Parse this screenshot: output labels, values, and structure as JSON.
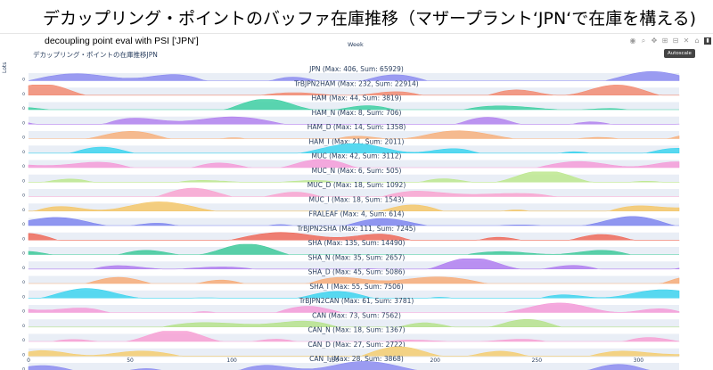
{
  "slide_title": "デカップリング・ポイントのバッファ在庫推移（マザープラント‘JPN‘で在庫を構える)",
  "subtitle": "decoupling point eval  with PSI  ['JPN']",
  "toolbar": {
    "icons": [
      "camera-icon",
      "zoom-icon",
      "pan-icon",
      "zoom-in-icon",
      "zoom-out-icon",
      "autoscale-icon",
      "home-icon",
      "plotly-logo-icon"
    ],
    "tooltip": "Autoscale"
  },
  "chart_data": {
    "type": "area",
    "title": "デカップリング・ポイントの在庫推移JPN",
    "xlabel": "Week",
    "ylabel": "Lots",
    "xlim": [
      0,
      320
    ],
    "xticks": [
      0,
      50,
      100,
      150,
      200,
      250,
      300
    ],
    "series": [
      {
        "name": "JPN",
        "title": "JPN (Max: 406, Sum: 65929)",
        "max": 406,
        "sum": 65929,
        "color": "#8c8cf0"
      },
      {
        "name": "TrBJPN2HAM",
        "title": "TrBJPN2HAM (Max: 232, Sum: 22914)",
        "max": 232,
        "sum": 22914,
        "color": "#f28b72"
      },
      {
        "name": "HAM",
        "title": "HAM (Max: 44, Sum: 3819)",
        "max": 44,
        "sum": 3819,
        "color": "#3ecfa2"
      },
      {
        "name": "HAM_N",
        "title": "HAM_N (Max: 8, Sum: 706)",
        "max": 8,
        "sum": 706,
        "color": "#b382ee"
      },
      {
        "name": "HAM_D",
        "title": "HAM_D (Max: 14, Sum: 1358)",
        "max": 14,
        "sum": 1358,
        "color": "#f7b07c"
      },
      {
        "name": "HAM_I",
        "title": "HAM_I (Max: 21, Sum: 2011)",
        "max": 21,
        "sum": 2011,
        "color": "#3dd3ee"
      },
      {
        "name": "MUC",
        "title": "MUC (Max: 42, Sum: 3112)",
        "max": 42,
        "sum": 3112,
        "color": "#f49bd8"
      },
      {
        "name": "MUC_N",
        "title": "MUC_N (Max: 6, Sum: 505)",
        "max": 6,
        "sum": 505,
        "color": "#bde88e"
      },
      {
        "name": "MUC_D",
        "title": "MUC_D (Max: 18, Sum: 1092)",
        "max": 18,
        "sum": 1092,
        "color": "#f9a3d0"
      },
      {
        "name": "MUC_I",
        "title": "MUC_I (Max: 18, Sum: 1543)",
        "max": 18,
        "sum": 1543,
        "color": "#f4c76a"
      },
      {
        "name": "FRALEAF",
        "title": "FRALEAF (Max: 4, Sum: 614)",
        "max": 4,
        "sum": 614,
        "color": "#7f86ef"
      },
      {
        "name": "TrBJPN2SHA",
        "title": "TrBJPN2SHA (Max: 111, Sum: 7245)",
        "max": 111,
        "sum": 7245,
        "color": "#ee6a5a"
      },
      {
        "name": "SHA",
        "title": "SHA (Max: 135, Sum: 14490)",
        "max": 135,
        "sum": 14490,
        "color": "#3ec99a"
      },
      {
        "name": "SHA_N",
        "title": "SHA_N (Max: 35, Sum: 2657)",
        "max": 35,
        "sum": 2657,
        "color": "#b07ef0"
      },
      {
        "name": "SHA_D",
        "title": "SHA_D (Max: 45, Sum: 5086)",
        "max": 45,
        "sum": 5086,
        "color": "#f7ac78"
      },
      {
        "name": "SHA_I",
        "title": "SHA_I (Max: 55, Sum: 7506)",
        "max": 55,
        "sum": 7506,
        "color": "#3dd3ee"
      },
      {
        "name": "TrBJPN2CAN",
        "title": "TrBJPN2CAN (Max: 61, Sum: 3781)",
        "max": 61,
        "sum": 3781,
        "color": "#f49bd8"
      },
      {
        "name": "CAN",
        "title": "CAN (Max: 73, Sum: 7562)",
        "max": 73,
        "sum": 7562,
        "color": "#b6e28c"
      },
      {
        "name": "CAN_N",
        "title": "CAN_N (Max: 18, Sum: 1367)",
        "max": 18,
        "sum": 1367,
        "color": "#f7a0d4"
      },
      {
        "name": "CAN_D",
        "title": "CAN_D (Max: 27, Sum: 2722)",
        "max": 27,
        "sum": 2722,
        "color": "#f4cd70"
      },
      {
        "name": "CAN_I",
        "title": "CAN_I (Max: 28, Sum: 3868)",
        "max": 28,
        "sum": 3868,
        "color": "#8c8cf0"
      }
    ],
    "grid": true,
    "legend": "none"
  }
}
